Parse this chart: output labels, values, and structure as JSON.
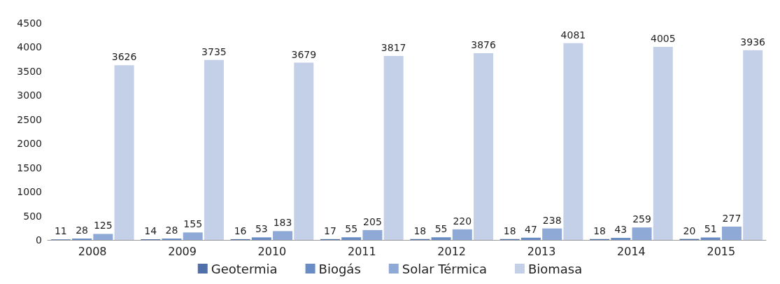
{
  "chart_data": {
    "type": "bar",
    "categories": [
      "2008",
      "2009",
      "2010",
      "2011",
      "2012",
      "2013",
      "2014",
      "2015"
    ],
    "series": [
      {
        "name": "Geotermia",
        "color": "#4f6fa8",
        "values": [
          11,
          14,
          16,
          17,
          18,
          18,
          18,
          20
        ]
      },
      {
        "name": "Biogás",
        "color": "#6a8cc4",
        "values": [
          28,
          28,
          53,
          55,
          55,
          47,
          43,
          51
        ]
      },
      {
        "name": "Solar Térmica",
        "color": "#8fa9d6",
        "values": [
          125,
          155,
          183,
          205,
          220,
          238,
          259,
          277
        ]
      },
      {
        "name": "Biomasa",
        "color": "#c3d0e8",
        "values": [
          3626,
          3735,
          3679,
          3817,
          3876,
          4081,
          4005,
          3936
        ]
      }
    ],
    "ylim": [
      0,
      4500
    ],
    "yticks": [
      0,
      500,
      1000,
      1500,
      2000,
      2500,
      3000,
      3500,
      4000,
      4500
    ],
    "grid": false,
    "legend": "bottom",
    "data_labels": true
  }
}
